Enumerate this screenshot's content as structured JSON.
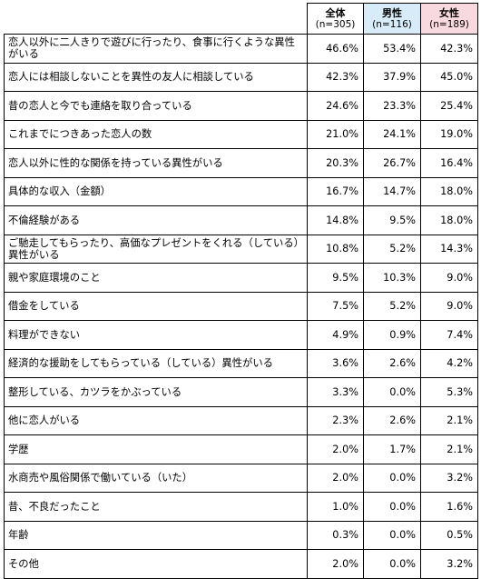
{
  "chart_data": {
    "type": "table",
    "columns": [
      {
        "title": "全体",
        "n": "(n=305)",
        "color": "#ffffff"
      },
      {
        "title": "男性",
        "n": "(n=116)",
        "color": "#d7ecf8"
      },
      {
        "title": "女性",
        "n": "(n=189)",
        "color": "#f9d9e0"
      }
    ],
    "rows": [
      {
        "label": "恋人以外に二人きりで遊びに行ったり、食事に行くような異性がいる",
        "all": "46.6%",
        "male": "53.4%",
        "female": "42.3%"
      },
      {
        "label": "恋人には相談しないことを異性の友人に相談している",
        "all": "42.3%",
        "male": "37.9%",
        "female": "45.0%"
      },
      {
        "label": "昔の恋人と今でも連絡を取り合っている",
        "all": "24.6%",
        "male": "23.3%",
        "female": "25.4%"
      },
      {
        "label": "これまでにつきあった恋人の数",
        "all": "21.0%",
        "male": "24.1%",
        "female": "19.0%"
      },
      {
        "label": "恋人以外に性的な関係を持っている異性がいる",
        "all": "20.3%",
        "male": "26.7%",
        "female": "16.4%"
      },
      {
        "label": "具体的な収入（金額）",
        "all": "16.7%",
        "male": "14.7%",
        "female": "18.0%"
      },
      {
        "label": "不倫経験がある",
        "all": "14.8%",
        "male": "9.5%",
        "female": "18.0%"
      },
      {
        "label": "ご馳走してもらったり、高価なプレゼントをくれる（している）異性がいる",
        "all": "10.8%",
        "male": "5.2%",
        "female": "14.3%"
      },
      {
        "label": "親や家庭環境のこと",
        "all": "9.5%",
        "male": "10.3%",
        "female": "9.0%"
      },
      {
        "label": "借金をしている",
        "all": "7.5%",
        "male": "5.2%",
        "female": "9.0%"
      },
      {
        "label": "料理ができない",
        "all": "4.9%",
        "male": "0.9%",
        "female": "7.4%"
      },
      {
        "label": "経済的な援助をしてもらっている（している）異性がいる",
        "all": "3.6%",
        "male": "2.6%",
        "female": "4.2%"
      },
      {
        "label": "整形している、カツラをかぶっている",
        "all": "3.3%",
        "male": "0.0%",
        "female": "5.3%"
      },
      {
        "label": "他に恋人がいる",
        "all": "2.3%",
        "male": "2.6%",
        "female": "2.1%"
      },
      {
        "label": "学歴",
        "all": "2.0%",
        "male": "1.7%",
        "female": "2.1%"
      },
      {
        "label": "水商売や風俗関係で働いている（いた）",
        "all": "2.0%",
        "male": "0.0%",
        "female": "3.2%"
      },
      {
        "label": "昔、不良だったこと",
        "all": "1.0%",
        "male": "0.0%",
        "female": "1.6%"
      },
      {
        "label": "年齢",
        "all": "0.3%",
        "male": "0.0%",
        "female": "0.5%"
      },
      {
        "label": "その他",
        "all": "2.0%",
        "male": "0.0%",
        "female": "3.2%"
      }
    ]
  }
}
